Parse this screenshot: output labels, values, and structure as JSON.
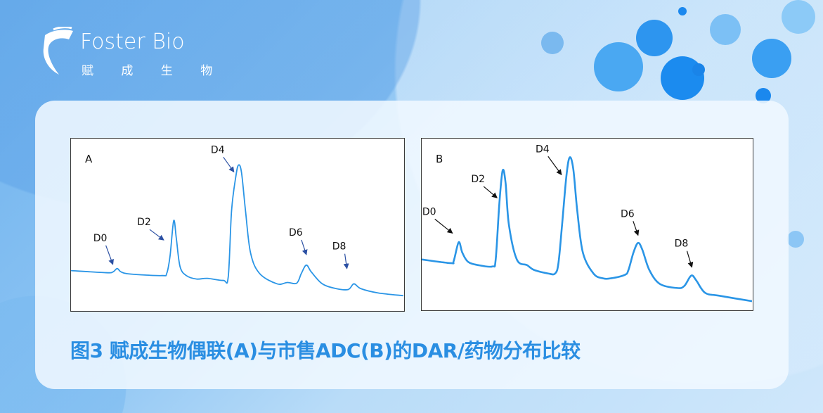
{
  "logo": {
    "name_en": "Foster Bio",
    "name_cn": "赋 成 生 物"
  },
  "caption": "图3 赋成生物偶联(A)与市售ADC(B)的DAR/药物分布比较",
  "colors": {
    "trace": "#2a95e6",
    "arrow_a": "#2b50a3",
    "arrow_b": "#111111",
    "caption": "#2a8ee2"
  },
  "chart_data": [
    {
      "type": "line",
      "panel_label": "A",
      "grid": false,
      "xlim": [
        0,
        100
      ],
      "ylim": [
        0,
        100
      ],
      "x": [
        0,
        10.5,
        12.6,
        13.9,
        15.1,
        17.9,
        27.3,
        28.8,
        29.8,
        30.9,
        31.7,
        32.8,
        34.7,
        37.8,
        41.0,
        45.8,
        47.3,
        48.3,
        49.6,
        50.4,
        51.3,
        52.5,
        54.0,
        56.7,
        62.0,
        65.1,
        67.9,
        69.3,
        70.8,
        72.3,
        75.6,
        79.8,
        83.4,
        85.1,
        87.2,
        92.4,
        100
      ],
      "y": [
        23.1,
        21.9,
        22.3,
        24.3,
        22.3,
        21.1,
        20.2,
        21.5,
        31.6,
        52.2,
        41.7,
        25.5,
        20.2,
        18.2,
        18.6,
        17.4,
        19.4,
        57.9,
        78.1,
        84.6,
        80.2,
        57.9,
        33.6,
        21.5,
        15.4,
        16.2,
        15.8,
        21.5,
        26.3,
        22.3,
        15.4,
        12.6,
        12.1,
        15.4,
        12.6,
        10.1,
        8.5
      ],
      "annotations": [
        {
          "text": "D0",
          "x": 12.6,
          "y": 26.7
        },
        {
          "text": "D2",
          "x": 27.9,
          "y": 40.9
        },
        {
          "text": "D4",
          "x": 49.0,
          "y": 80.6
        },
        {
          "text": "D6",
          "x": 70.8,
          "y": 32.4
        },
        {
          "text": "D8",
          "x": 83.0,
          "y": 24.3
        }
      ]
    },
    {
      "type": "line",
      "panel_label": "B",
      "grid": false,
      "xlim": [
        0,
        100
      ],
      "ylim": [
        0,
        100
      ],
      "x": [
        0,
        8.7,
        9.7,
        11.2,
        12.3,
        14.0,
        17.1,
        21.4,
        22.4,
        23.5,
        24.5,
        25.4,
        26.4,
        28.8,
        31.9,
        34.0,
        38.3,
        40.4,
        41.4,
        42.5,
        43.8,
        44.8,
        45.9,
        47.1,
        48.8,
        52.0,
        54.8,
        57.3,
        61.5,
        62.6,
        64.1,
        65.5,
        66.8,
        68.9,
        72.1,
        77.4,
        79.5,
        81.6,
        83.1,
        85.8,
        90.1,
        100
      ],
      "y": [
        29.3,
        27.2,
        28.5,
        39.4,
        33.3,
        28.0,
        26.0,
        25.2,
        29.3,
        61.8,
        81.3,
        74.0,
        49.6,
        29.3,
        26.0,
        23.2,
        21.1,
        21.1,
        27.2,
        49.6,
        78.0,
        89.0,
        82.1,
        57.7,
        33.3,
        21.1,
        18.3,
        18.3,
        20.3,
        23.2,
        33.3,
        39.0,
        35.0,
        23.2,
        15.0,
        12.6,
        13.8,
        19.9,
        17.1,
        9.8,
        8.1,
        4.9
      ],
      "annotations": [
        {
          "text": "D0",
          "x": 9.3,
          "y": 44.7
        },
        {
          "text": "D2",
          "x": 22.8,
          "y": 65.4
        },
        {
          "text": "D4",
          "x": 42.3,
          "y": 78.9
        },
        {
          "text": "D6",
          "x": 65.5,
          "y": 43.5
        },
        {
          "text": "D8",
          "x": 81.8,
          "y": 24.8
        }
      ]
    }
  ]
}
